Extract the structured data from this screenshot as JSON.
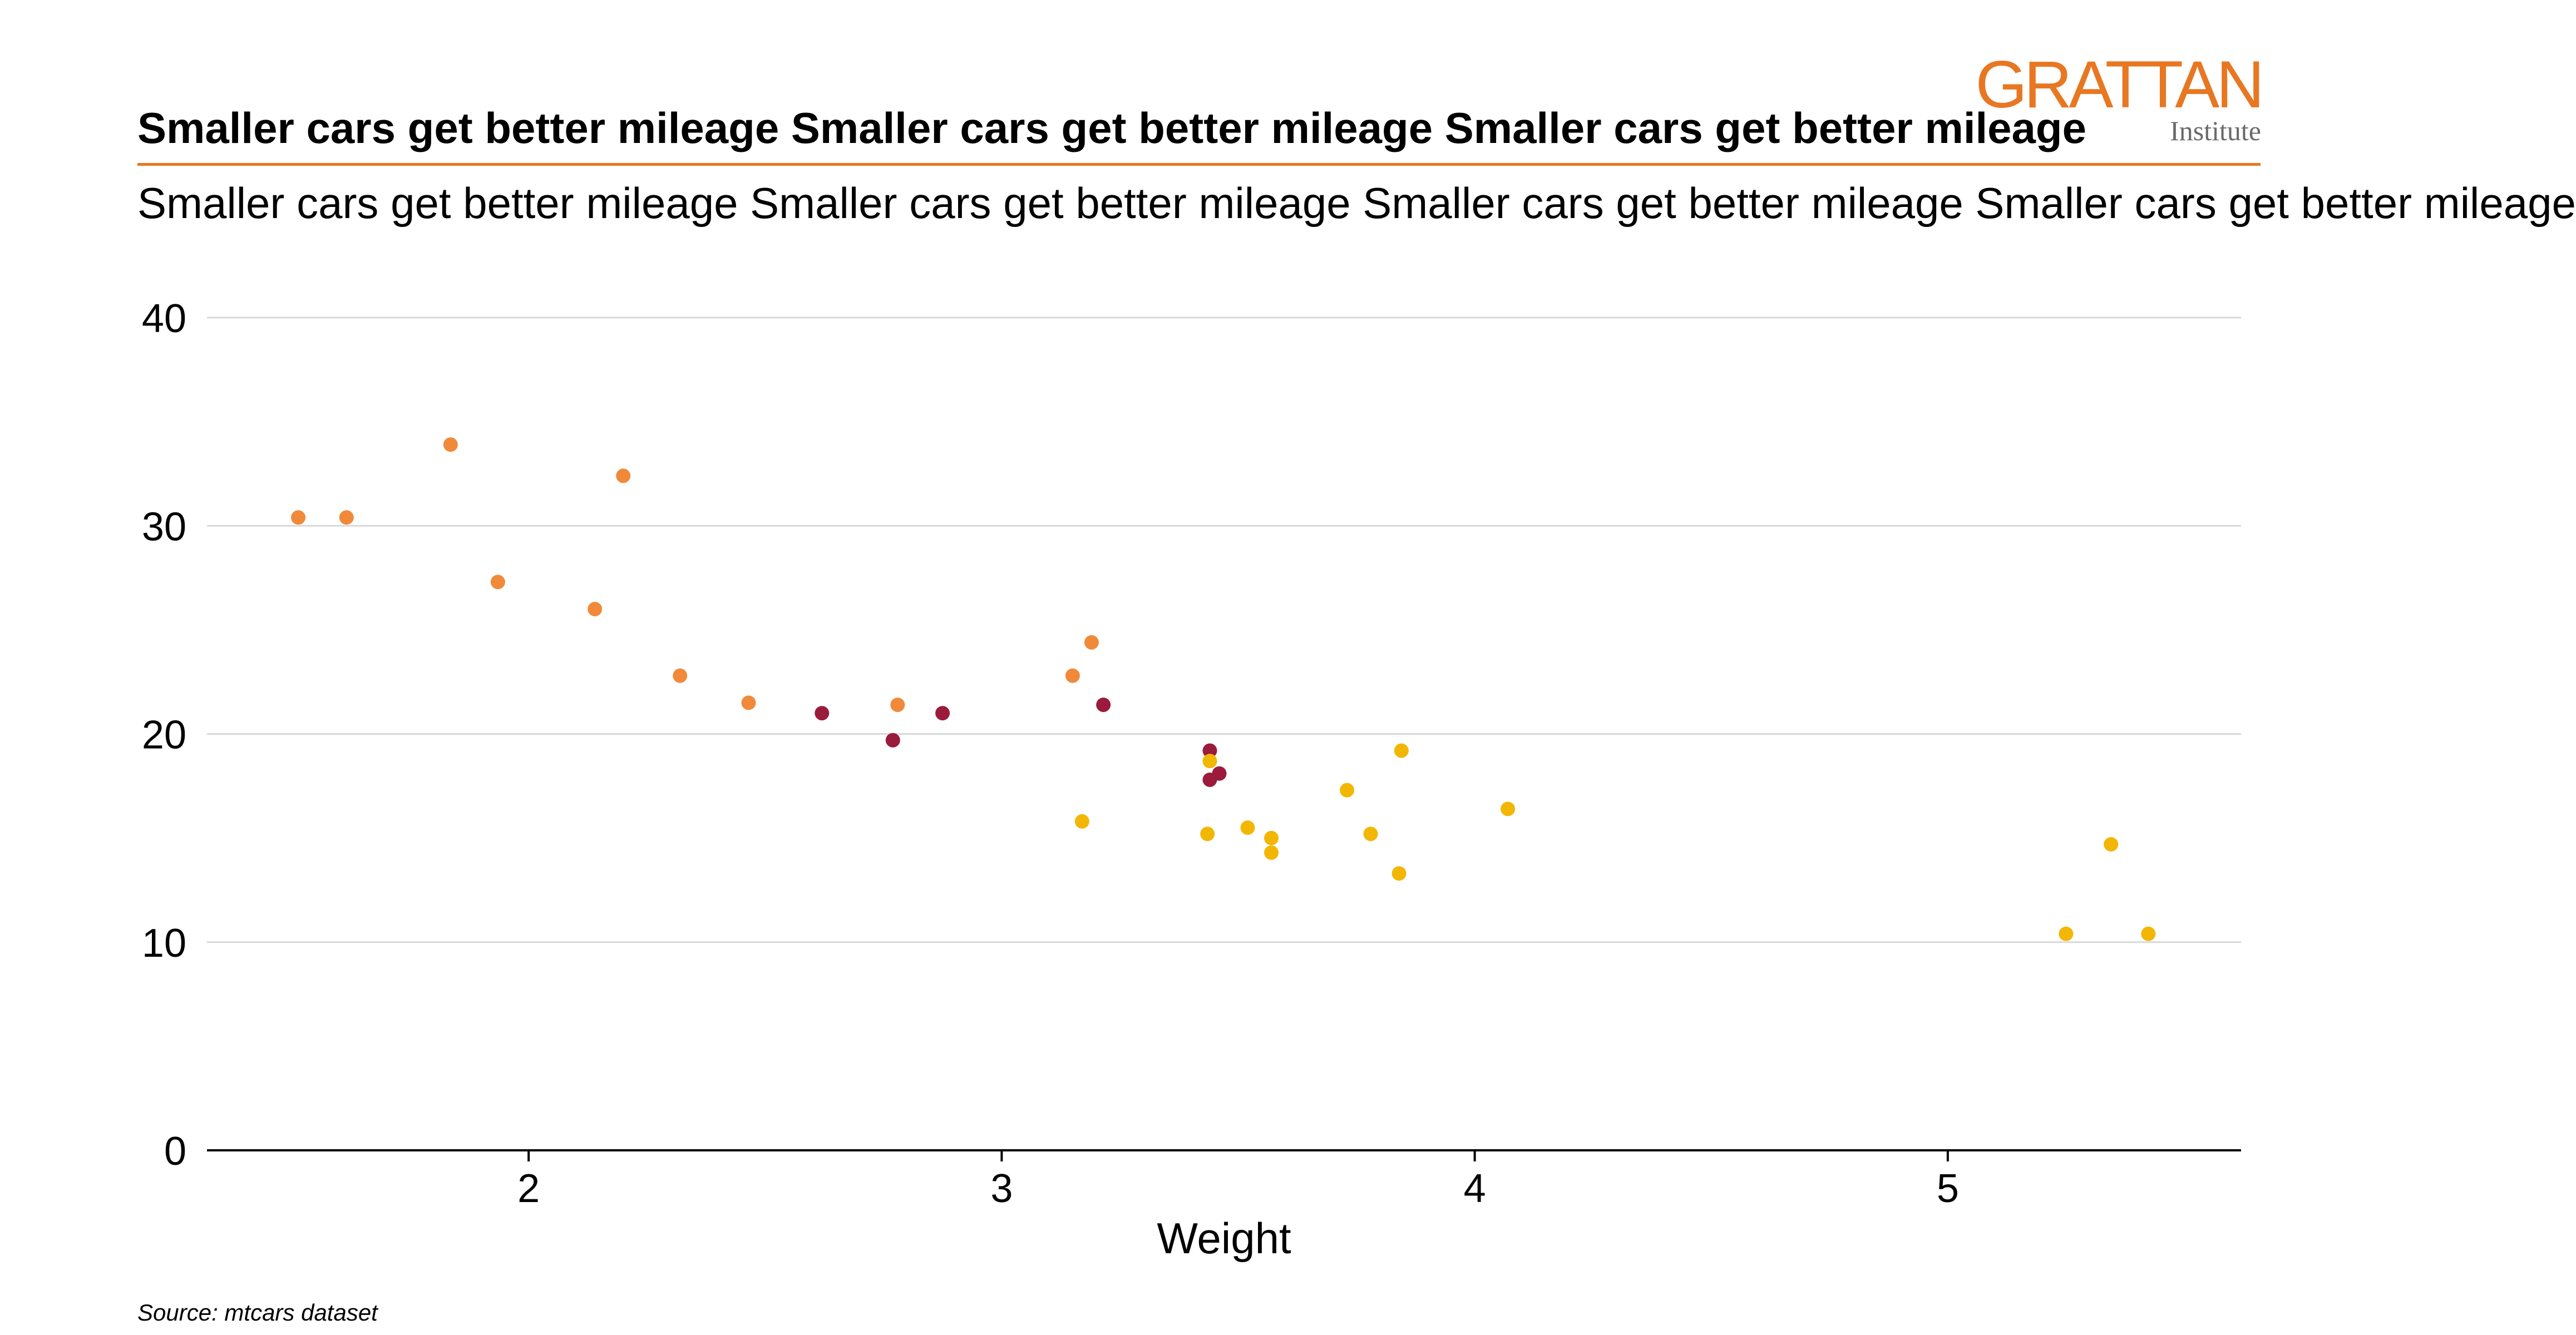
{
  "logo": {
    "name": "GRATTAN",
    "sub": "Institute"
  },
  "header": {
    "title": "Smaller cars get better mileage Smaller cars get better mileage Smaller cars get better mileage",
    "subtitle": "Smaller cars get better mileage Smaller cars get better mileage Smaller cars get better mileage Smaller cars get better mileage"
  },
  "source": "Source: mtcars dataset",
  "colors": {
    "accent": "#E87722",
    "series": [
      "#F08A3A",
      "#9B1B3C",
      "#F2B705"
    ],
    "grid": "#d9d9d9",
    "axis": "#000000"
  },
  "chart_data": {
    "type": "scatter",
    "title": "",
    "xlabel": "Weight",
    "ylabel": "",
    "xlim": [
      1.32,
      5.62
    ],
    "ylim": [
      0,
      40
    ],
    "x_ticks": [
      2,
      3,
      4,
      5
    ],
    "y_ticks": [
      0,
      10,
      20,
      30,
      40
    ],
    "grid": "horizontal",
    "legend": "none",
    "series": [
      {
        "points": [
          {
            "x": 1.513,
            "y": 30.4
          },
          {
            "x": 1.615,
            "y": 30.4
          },
          {
            "x": 1.835,
            "y": 33.9
          },
          {
            "x": 1.935,
            "y": 27.3
          },
          {
            "x": 2.14,
            "y": 26.0
          },
          {
            "x": 2.2,
            "y": 32.4
          },
          {
            "x": 2.32,
            "y": 22.8
          },
          {
            "x": 2.465,
            "y": 21.5
          },
          {
            "x": 2.78,
            "y": 21.4
          },
          {
            "x": 3.15,
            "y": 22.8
          },
          {
            "x": 3.19,
            "y": 24.4
          }
        ]
      },
      {
        "points": [
          {
            "x": 2.62,
            "y": 21.0
          },
          {
            "x": 2.77,
            "y": 19.7
          },
          {
            "x": 2.875,
            "y": 21.0
          },
          {
            "x": 3.215,
            "y": 21.4
          },
          {
            "x": 3.44,
            "y": 19.2
          },
          {
            "x": 3.44,
            "y": 17.8
          },
          {
            "x": 3.46,
            "y": 18.1
          }
        ]
      },
      {
        "points": [
          {
            "x": 3.17,
            "y": 15.8
          },
          {
            "x": 3.435,
            "y": 15.2
          },
          {
            "x": 3.44,
            "y": 18.7
          },
          {
            "x": 3.52,
            "y": 15.5
          },
          {
            "x": 3.57,
            "y": 15.0
          },
          {
            "x": 3.57,
            "y": 14.3
          },
          {
            "x": 3.73,
            "y": 17.3
          },
          {
            "x": 3.78,
            "y": 15.2
          },
          {
            "x": 3.84,
            "y": 13.3
          },
          {
            "x": 3.845,
            "y": 19.2
          },
          {
            "x": 4.07,
            "y": 16.4
          },
          {
            "x": 5.25,
            "y": 10.4
          },
          {
            "x": 5.345,
            "y": 14.7
          },
          {
            "x": 5.424,
            "y": 10.4
          }
        ]
      }
    ]
  }
}
